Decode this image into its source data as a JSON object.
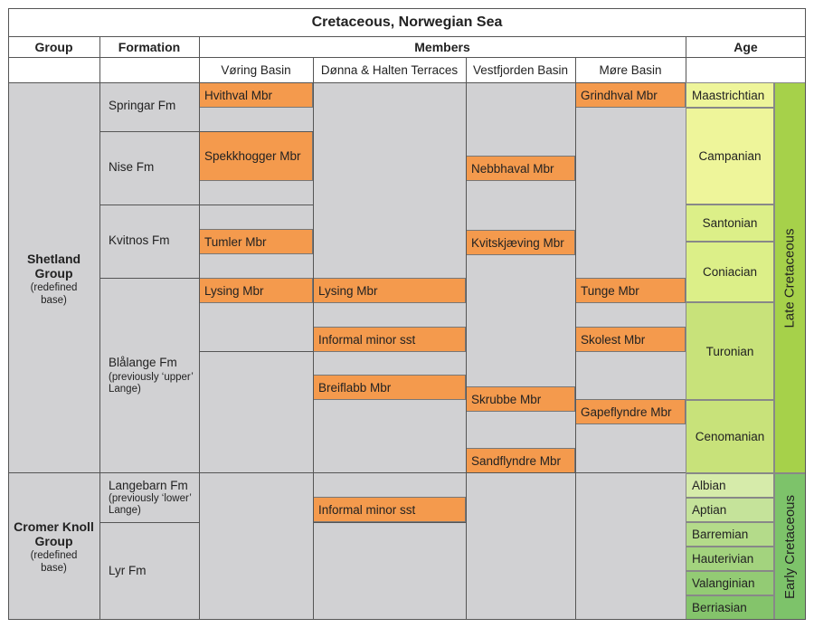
{
  "title": "Cretaceous, Norwegian Sea",
  "headers": {
    "group": "Group",
    "formation": "Formation",
    "members": "Members",
    "age": "Age"
  },
  "basins": [
    "Vøring Basin",
    "Dønna & Halten Terraces",
    "Vestfjorden Basin",
    "Møre Basin"
  ],
  "groups": [
    {
      "name": "Shetland Group",
      "note": "(redefined base)"
    },
    {
      "name": "Cromer Knoll Group",
      "note": "(redefined base)"
    }
  ],
  "formations": [
    {
      "name": "Springar Fm",
      "note": ""
    },
    {
      "name": "Nise Fm",
      "note": ""
    },
    {
      "name": "Kvitnos Fm",
      "note": ""
    },
    {
      "name": "Blålange Fm",
      "note": "(previously ‘upper’ Lange)"
    },
    {
      "name": "Langebarn Fm",
      "note": "(previously ‘lower’ Lange)"
    },
    {
      "name": "Lyr Fm",
      "note": ""
    }
  ],
  "members": {
    "hvithval": "Hvithval Mbr",
    "spekkhogger": "Spekkhogger Mbr",
    "tumler": "Tumler Mbr",
    "lysing_voring": "Lysing Mbr",
    "lysing_donna": "Lysing Mbr",
    "informal_1": "Informal minor sst",
    "breiflabb": "Breiflabb Mbr",
    "informal_2": "Informal minor sst",
    "nebbhaval": "Nebbhaval Mbr",
    "kvitskjaeving": "Kvitskjæving Mbr",
    "skrubbe": "Skrubbe Mbr",
    "sandflyndre": "Sandflyndre Mbr",
    "grindhval": "Grindhval Mbr",
    "tunge": "Tunge Mbr",
    "skolest": "Skolest Mbr",
    "gapeflyndre": "Gapeflyndre Mbr"
  },
  "ages": [
    "Maastrichtian",
    "Campanian",
    "Santonian",
    "Coniacian",
    "Turonian",
    "Cenomanian",
    "Albian",
    "Aptian",
    "Barremian",
    "Hauterivian",
    "Valanginian",
    "Berriasian"
  ],
  "epochs": {
    "late": "Late Cretaceous",
    "early": "Early Cretaceous"
  },
  "colors": {
    "member": "#f49a4d",
    "grey": "#d1d1d3",
    "late_age": "#eef59a",
    "late_age_lower": "#c8e27a",
    "early_age_1": "#cfe6a0",
    "early_age_2": "#b9dc8a",
    "early_age_3": "#97ce76",
    "early_age_4": "#7dc36a",
    "late_epoch": "#a6d14a",
    "early_epoch": "#7dc36a"
  }
}
